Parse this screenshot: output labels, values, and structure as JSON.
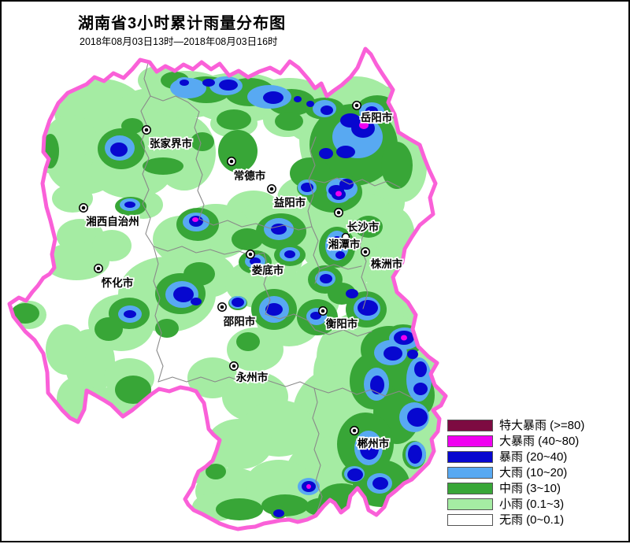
{
  "title": "湖南省3小时累计雨量分布图",
  "subtitle": "2018年08月03日13时—2018年08月03日16时",
  "legend": {
    "items": [
      {
        "label": "特大暴雨 (>=80)",
        "level": "extraordinary-rainstorm",
        "color": "#7D0B41"
      },
      {
        "label": "大暴雨 (40~80)",
        "level": "downpour-rainstorm",
        "color": "#F000F0"
      },
      {
        "label": "暴雨 (20~40)",
        "level": "rainstorm",
        "color": "#0707CF"
      },
      {
        "label": "大雨 (10~20)",
        "level": "heavy-rain",
        "color": "#58A9F2"
      },
      {
        "label": "中雨 (3~10)",
        "level": "moderate-rain",
        "color": "#38A637"
      },
      {
        "label": "小雨 (0.1~3)",
        "level": "light-rain",
        "color": "#A5ECA3"
      },
      {
        "label": "无雨 (0~0.1)",
        "level": "no-rain",
        "color": "#FFFFFF"
      }
    ]
  },
  "map": {
    "province_border_color": "#FA60D8",
    "cities": [
      {
        "name": "岳阳市",
        "marker": [
          451,
          132
        ],
        "label": [
          476,
          152
        ]
      },
      {
        "name": "张家界市",
        "marker": [
          184,
          163
        ],
        "label": [
          215,
          185
        ]
      },
      {
        "name": "常德市",
        "marker": [
          292,
          203
        ],
        "label": [
          315,
          226
        ]
      },
      {
        "name": "益阳市",
        "marker": [
          343,
          238
        ],
        "label": [
          366,
          260
        ]
      },
      {
        "name": "湘西自治州",
        "marker": [
          104,
          262
        ],
        "label": [
          141,
          284
        ]
      },
      {
        "name": "长沙市",
        "marker": [
          428,
          268
        ],
        "label": [
          459,
          291
        ]
      },
      {
        "name": "湘潭市",
        "marker": [
          437,
          299
        ],
        "label": [
          435,
          313
        ],
        "marker_style": "open"
      },
      {
        "name": "株洲市",
        "marker": [
          462,
          318
        ],
        "label": [
          489,
          338
        ]
      },
      {
        "name": "娄底市",
        "marker": [
          316,
          321
        ],
        "label": [
          338,
          346
        ]
      },
      {
        "name": "怀化市",
        "marker": [
          123,
          339
        ],
        "label": [
          147,
          362
        ]
      },
      {
        "name": "邵阳市",
        "marker": [
          280,
          388
        ],
        "label": [
          302,
          411
        ]
      },
      {
        "name": "衡阳市",
        "marker": [
          408,
          393
        ],
        "label": [
          432,
          414
        ]
      },
      {
        "name": "永州市",
        "marker": [
          295,
          463
        ],
        "label": [
          318,
          482
        ]
      },
      {
        "name": "郴州市",
        "marker": [
          448,
          545
        ],
        "label": [
          472,
          566
        ]
      }
    ]
  }
}
